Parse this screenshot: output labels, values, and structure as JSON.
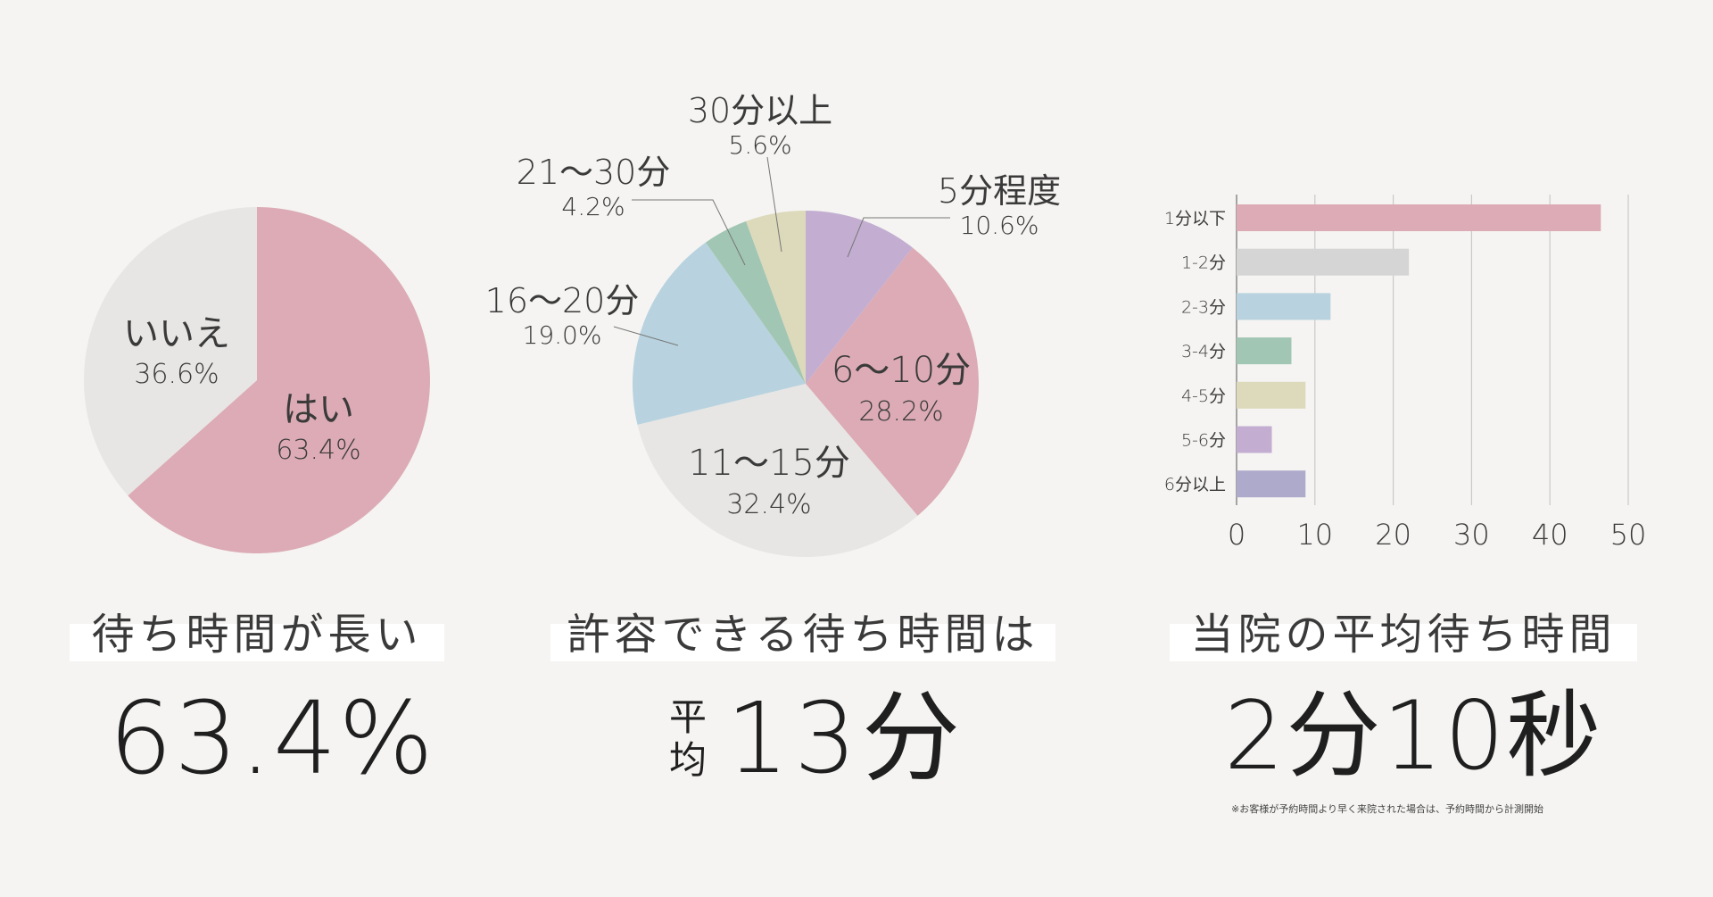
{
  "chart_data": [
    {
      "type": "pie",
      "slices": [
        {
          "label": "はい",
          "value_label": "63.4%",
          "value": 63.4,
          "color": "#dcabb5"
        },
        {
          "label": "いいえ",
          "value_label": "36.6%",
          "value": 36.6,
          "color": "#e7e6e4"
        }
      ]
    },
    {
      "type": "pie",
      "slices": [
        {
          "label": "5分程度",
          "value_label": "10.6%",
          "value": 10.6,
          "color": "#c3aed1"
        },
        {
          "label": "6～10分",
          "value_label": "28.2%",
          "value": 28.2,
          "color": "#dcabb5"
        },
        {
          "label": "11～15分",
          "value_label": "32.4%",
          "value": 32.4,
          "color": "#e7e6e4"
        },
        {
          "label": "16～20分",
          "value_label": "19.0%",
          "value": 19.0,
          "color": "#b8d3df"
        },
        {
          "label": "21～30分",
          "value_label": "4.2%",
          "value": 4.2,
          "color": "#a1c6b3"
        },
        {
          "label": "30分以上",
          "value_label": "5.6%",
          "value": 5.6,
          "color": "#ddd9bb"
        }
      ]
    },
    {
      "type": "bar",
      "orientation": "horizontal",
      "categories": [
        "1分以下",
        "1-2分",
        "2-3分",
        "3-4分",
        "4-5分",
        "5-6分",
        "6分以上"
      ],
      "values": [
        46.5,
        22,
        12,
        7,
        8.8,
        4.5,
        8.8
      ],
      "colors": [
        "#dcabb5",
        "#d5d5d5",
        "#b8d3df",
        "#a1c6b3",
        "#ddd9bb",
        "#c3aed1",
        "#adaacb"
      ],
      "xlim": [
        0,
        50
      ],
      "xticks": [
        "0",
        "10",
        "20",
        "30",
        "40",
        "50"
      ],
      "grid": true
    }
  ],
  "sections": [
    {
      "title": "待ち時間が長い",
      "stat": "63.4%"
    },
    {
      "title": "許容できる待ち時間は",
      "prefix": [
        "平",
        "均"
      ],
      "stat": "13分"
    },
    {
      "title": "当院の平均待ち時間",
      "stat": "2分10秒",
      "note": "※お客様が予約時間より早く来院された場合は、予約時間から計測開始"
    }
  ]
}
